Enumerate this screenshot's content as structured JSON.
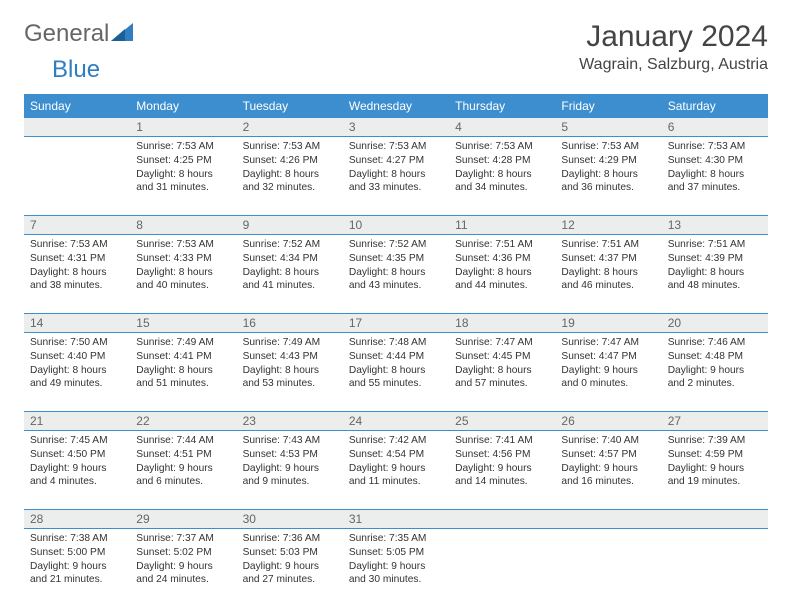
{
  "logo": {
    "text1": "General",
    "text2": "Blue"
  },
  "title": "January 2024",
  "location": "Wagrain, Salzburg, Austria",
  "colors": {
    "header_bg": "#3d8ecf",
    "header_text": "#ffffff",
    "rule": "#3d8ecf",
    "daynum_bg": "#eceded",
    "body_text": "#333333",
    "title_text": "#444444"
  },
  "weekdays": [
    "Sunday",
    "Monday",
    "Tuesday",
    "Wednesday",
    "Thursday",
    "Friday",
    "Saturday"
  ],
  "weeks": [
    [
      {
        "n": "",
        "sr": "",
        "ss": "",
        "dl": ""
      },
      {
        "n": "1",
        "sr": "Sunrise: 7:53 AM",
        "ss": "Sunset: 4:25 PM",
        "dl": "Daylight: 8 hours and 31 minutes."
      },
      {
        "n": "2",
        "sr": "Sunrise: 7:53 AM",
        "ss": "Sunset: 4:26 PM",
        "dl": "Daylight: 8 hours and 32 minutes."
      },
      {
        "n": "3",
        "sr": "Sunrise: 7:53 AM",
        "ss": "Sunset: 4:27 PM",
        "dl": "Daylight: 8 hours and 33 minutes."
      },
      {
        "n": "4",
        "sr": "Sunrise: 7:53 AM",
        "ss": "Sunset: 4:28 PM",
        "dl": "Daylight: 8 hours and 34 minutes."
      },
      {
        "n": "5",
        "sr": "Sunrise: 7:53 AM",
        "ss": "Sunset: 4:29 PM",
        "dl": "Daylight: 8 hours and 36 minutes."
      },
      {
        "n": "6",
        "sr": "Sunrise: 7:53 AM",
        "ss": "Sunset: 4:30 PM",
        "dl": "Daylight: 8 hours and 37 minutes."
      }
    ],
    [
      {
        "n": "7",
        "sr": "Sunrise: 7:53 AM",
        "ss": "Sunset: 4:31 PM",
        "dl": "Daylight: 8 hours and 38 minutes."
      },
      {
        "n": "8",
        "sr": "Sunrise: 7:53 AM",
        "ss": "Sunset: 4:33 PM",
        "dl": "Daylight: 8 hours and 40 minutes."
      },
      {
        "n": "9",
        "sr": "Sunrise: 7:52 AM",
        "ss": "Sunset: 4:34 PM",
        "dl": "Daylight: 8 hours and 41 minutes."
      },
      {
        "n": "10",
        "sr": "Sunrise: 7:52 AM",
        "ss": "Sunset: 4:35 PM",
        "dl": "Daylight: 8 hours and 43 minutes."
      },
      {
        "n": "11",
        "sr": "Sunrise: 7:51 AM",
        "ss": "Sunset: 4:36 PM",
        "dl": "Daylight: 8 hours and 44 minutes."
      },
      {
        "n": "12",
        "sr": "Sunrise: 7:51 AM",
        "ss": "Sunset: 4:37 PM",
        "dl": "Daylight: 8 hours and 46 minutes."
      },
      {
        "n": "13",
        "sr": "Sunrise: 7:51 AM",
        "ss": "Sunset: 4:39 PM",
        "dl": "Daylight: 8 hours and 48 minutes."
      }
    ],
    [
      {
        "n": "14",
        "sr": "Sunrise: 7:50 AM",
        "ss": "Sunset: 4:40 PM",
        "dl": "Daylight: 8 hours and 49 minutes."
      },
      {
        "n": "15",
        "sr": "Sunrise: 7:49 AM",
        "ss": "Sunset: 4:41 PM",
        "dl": "Daylight: 8 hours and 51 minutes."
      },
      {
        "n": "16",
        "sr": "Sunrise: 7:49 AM",
        "ss": "Sunset: 4:43 PM",
        "dl": "Daylight: 8 hours and 53 minutes."
      },
      {
        "n": "17",
        "sr": "Sunrise: 7:48 AM",
        "ss": "Sunset: 4:44 PM",
        "dl": "Daylight: 8 hours and 55 minutes."
      },
      {
        "n": "18",
        "sr": "Sunrise: 7:47 AM",
        "ss": "Sunset: 4:45 PM",
        "dl": "Daylight: 8 hours and 57 minutes."
      },
      {
        "n": "19",
        "sr": "Sunrise: 7:47 AM",
        "ss": "Sunset: 4:47 PM",
        "dl": "Daylight: 9 hours and 0 minutes."
      },
      {
        "n": "20",
        "sr": "Sunrise: 7:46 AM",
        "ss": "Sunset: 4:48 PM",
        "dl": "Daylight: 9 hours and 2 minutes."
      }
    ],
    [
      {
        "n": "21",
        "sr": "Sunrise: 7:45 AM",
        "ss": "Sunset: 4:50 PM",
        "dl": "Daylight: 9 hours and 4 minutes."
      },
      {
        "n": "22",
        "sr": "Sunrise: 7:44 AM",
        "ss": "Sunset: 4:51 PM",
        "dl": "Daylight: 9 hours and 6 minutes."
      },
      {
        "n": "23",
        "sr": "Sunrise: 7:43 AM",
        "ss": "Sunset: 4:53 PM",
        "dl": "Daylight: 9 hours and 9 minutes."
      },
      {
        "n": "24",
        "sr": "Sunrise: 7:42 AM",
        "ss": "Sunset: 4:54 PM",
        "dl": "Daylight: 9 hours and 11 minutes."
      },
      {
        "n": "25",
        "sr": "Sunrise: 7:41 AM",
        "ss": "Sunset: 4:56 PM",
        "dl": "Daylight: 9 hours and 14 minutes."
      },
      {
        "n": "26",
        "sr": "Sunrise: 7:40 AM",
        "ss": "Sunset: 4:57 PM",
        "dl": "Daylight: 9 hours and 16 minutes."
      },
      {
        "n": "27",
        "sr": "Sunrise: 7:39 AM",
        "ss": "Sunset: 4:59 PM",
        "dl": "Daylight: 9 hours and 19 minutes."
      }
    ],
    [
      {
        "n": "28",
        "sr": "Sunrise: 7:38 AM",
        "ss": "Sunset: 5:00 PM",
        "dl": "Daylight: 9 hours and 21 minutes."
      },
      {
        "n": "29",
        "sr": "Sunrise: 7:37 AM",
        "ss": "Sunset: 5:02 PM",
        "dl": "Daylight: 9 hours and 24 minutes."
      },
      {
        "n": "30",
        "sr": "Sunrise: 7:36 AM",
        "ss": "Sunset: 5:03 PM",
        "dl": "Daylight: 9 hours and 27 minutes."
      },
      {
        "n": "31",
        "sr": "Sunrise: 7:35 AM",
        "ss": "Sunset: 5:05 PM",
        "dl": "Daylight: 9 hours and 30 minutes."
      },
      {
        "n": "",
        "sr": "",
        "ss": "",
        "dl": ""
      },
      {
        "n": "",
        "sr": "",
        "ss": "",
        "dl": ""
      },
      {
        "n": "",
        "sr": "",
        "ss": "",
        "dl": ""
      }
    ]
  ]
}
